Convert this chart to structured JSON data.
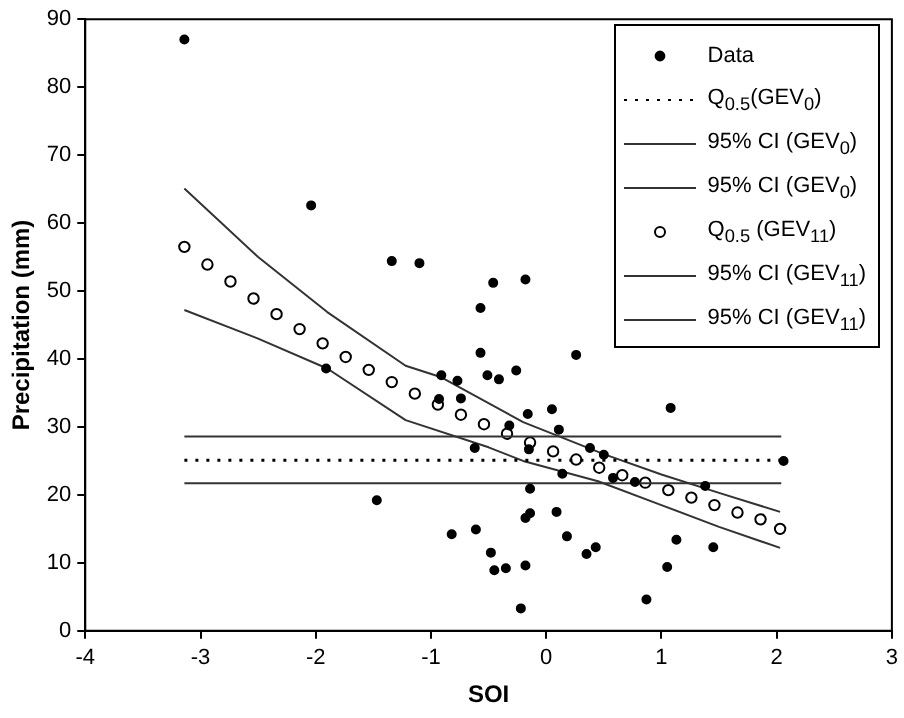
{
  "chart_data": {
    "type": "scatter",
    "xlabel": "SOI",
    "ylabel": "Precipitation (mm)",
    "xlim": [
      -4,
      3
    ],
    "xticks": [
      -4,
      -3,
      -2,
      -1,
      0,
      1,
      2,
      3
    ],
    "ylim": [
      0,
      90
    ],
    "yticks": [
      0,
      10,
      20,
      30,
      40,
      50,
      60,
      70,
      80,
      90
    ],
    "grid": false,
    "legend": "top right",
    "series": [
      {
        "name": "Data",
        "type": "scatter",
        "marker": "circle",
        "color": "#000000",
        "x": [
          -3.14,
          -2.04,
          -1.34,
          -1.1,
          -0.46,
          -0.18,
          -0.57,
          -0.57,
          0.26,
          -1.91,
          -0.91,
          -0.77,
          -0.51,
          -0.41,
          -0.26,
          -0.93,
          -0.74,
          -0.16,
          0.05,
          0.11,
          -0.32,
          -0.62,
          -0.15,
          0.14,
          -0.14,
          -1.47,
          -0.14,
          -0.18,
          0.09,
          -0.82,
          -0.61,
          0.18,
          -0.48,
          -0.45,
          -0.35,
          -0.18,
          -0.22,
          0.38,
          0.5,
          0.35,
          0.43,
          1.08,
          0.58,
          0.77,
          1.38,
          1.13,
          1.45,
          1.05,
          0.87,
          2.06
        ],
        "values": [
          87,
          62.6,
          54.4,
          54.1,
          51.2,
          51.7,
          47.5,
          40.9,
          40.6,
          38.6,
          37.6,
          36.8,
          37.6,
          37,
          38.3,
          34.1,
          34.2,
          31.9,
          32.6,
          29.6,
          30.2,
          26.9,
          26.7,
          23.1,
          20.9,
          19.2,
          17.3,
          16.6,
          17.5,
          14.2,
          14.9,
          13.9,
          11.5,
          8.9,
          9.2,
          9.6,
          3.3,
          26.9,
          25.9,
          11.3,
          12.3,
          32.8,
          22.5,
          21.9,
          21.3,
          13.4,
          12.3,
          9.4,
          4.6,
          25
        ]
      },
      {
        "name": "Q$_{0.5}$(GEV$_{0}$)",
        "type": "line",
        "marker": "none",
        "line_style": "dotted",
        "color": "#000000",
        "x": [
          -3.14,
          2.04
        ],
        "values": [
          25.1,
          25.1
        ]
      },
      {
        "name": "95% CI (GEV$_{0}$)",
        "type": "line",
        "marker": "none",
        "line_style": "solid",
        "color": "#333333",
        "x": [
          -3.14,
          2.04
        ],
        "values": [
          28.6,
          28.6
        ]
      },
      {
        "name": "95% CI (GEV$_{0}$)",
        "type": "line",
        "marker": "none",
        "line_style": "solid",
        "color": "#333333",
        "x": [
          -3.14,
          2.04
        ],
        "values": [
          21.7,
          21.7
        ]
      },
      {
        "name": "Q$_{0.5}$ (GEV$_{11}$)",
        "type": "scatter",
        "marker": "circle",
        "color": "#000000",
        "x": [
          -3.14,
          -2.94,
          -2.74,
          -2.54,
          -2.34,
          -2.14,
          -1.94,
          -1.74,
          -1.54,
          -1.34,
          -1.14,
          -0.94,
          -0.74,
          -0.54,
          -0.34,
          -0.14,
          0.06,
          0.26,
          0.46,
          0.66,
          0.86,
          1.06,
          1.26,
          1.46,
          1.66,
          1.86,
          2.03
        ],
        "values": [
          56.5,
          53.9,
          51.4,
          48.9,
          46.6,
          44.4,
          42.3,
          40.3,
          38.4,
          36.6,
          34.9,
          33.3,
          31.8,
          30.4,
          29,
          27.7,
          26.4,
          25.2,
          24,
          22.9,
          21.8,
          20.7,
          19.6,
          18.5,
          17.4,
          16.4,
          15
        ]
      },
      {
        "name": "95% CI (GEV$_{11}$)",
        "type": "line",
        "marker": "none",
        "line_style": "solid",
        "color": "#333333",
        "x": [
          -3.14,
          -2.5,
          -1.9,
          -1.22,
          -0.91,
          -0.2,
          0.5,
          1,
          1.5,
          2.03
        ],
        "values": [
          65.1,
          55,
          46.9,
          39,
          37.3,
          30.7,
          26,
          23,
          20.3,
          17.5
        ]
      },
      {
        "name": "95% CI (GEV$_{11}$)",
        "type": "line",
        "marker": "none",
        "line_style": "solid",
        "color": "#333333",
        "x": [
          -3.14,
          -2.5,
          -1.9,
          -1.22,
          -0.5,
          -0.2,
          0.45,
          1,
          1.5,
          2.03
        ],
        "values": [
          47.2,
          43,
          38.6,
          31,
          27,
          25,
          22,
          18.5,
          15.3,
          12.2
        ]
      }
    ]
  }
}
